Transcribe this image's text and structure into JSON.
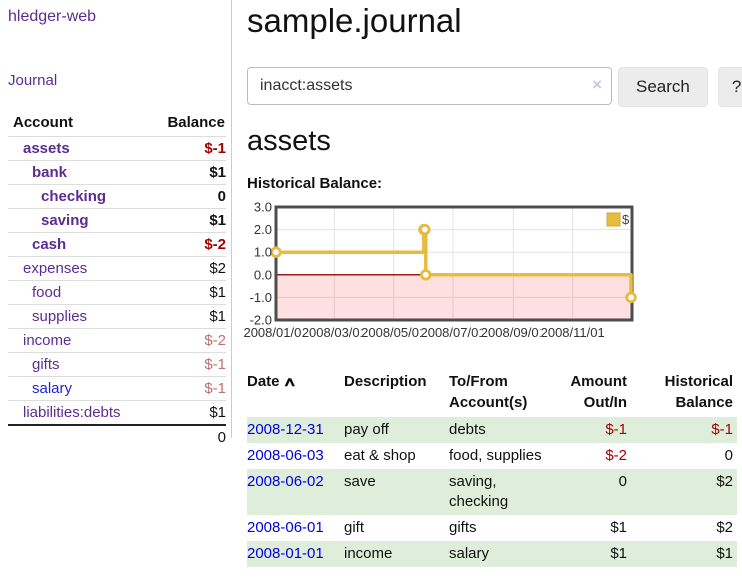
{
  "app_title": "hledger-web",
  "sidebar": {
    "journal_link": "Journal",
    "accounts": {
      "account_header": "Account",
      "balance_header": "Balance",
      "rows": [
        {
          "name": "assets",
          "indent": 1,
          "bold": true,
          "balance": "$-1",
          "negative": "strong"
        },
        {
          "name": "bank",
          "indent": 2,
          "bold": true,
          "balance": "$1",
          "negative": "none"
        },
        {
          "name": "checking",
          "indent": 3,
          "bold": true,
          "balance": "0",
          "negative": "none"
        },
        {
          "name": "saving",
          "indent": 3,
          "bold": true,
          "balance": "$1",
          "negative": "none"
        },
        {
          "name": "cash",
          "indent": 2,
          "bold": true,
          "balance": "$-2",
          "negative": "strong"
        },
        {
          "name": "expenses",
          "indent": 1,
          "bold": false,
          "balance": "$2",
          "negative": "none"
        },
        {
          "name": "food",
          "indent": 2,
          "bold": false,
          "balance": "$1",
          "negative": "none"
        },
        {
          "name": "supplies",
          "indent": 2,
          "bold": false,
          "balance": "$1",
          "negative": "none"
        },
        {
          "name": "income",
          "indent": 1,
          "bold": false,
          "balance": "$-2",
          "negative": "soft"
        },
        {
          "name": "gifts",
          "indent": 2,
          "bold": false,
          "balance": "$-1",
          "negative": "soft"
        },
        {
          "name": "salary",
          "indent": 2,
          "bold": false,
          "balance": "$-1",
          "negative": "soft",
          "link_style": "blue"
        },
        {
          "name": "liabilities:debts",
          "indent": 1,
          "bold": false,
          "balance": "$1",
          "negative": "none"
        }
      ],
      "total": "0"
    }
  },
  "main": {
    "title": "sample.journal",
    "search": {
      "value": "inacct:assets",
      "clear_icon": "×",
      "button_label": "Search",
      "help_label": "?"
    },
    "account_heading": "assets",
    "chart_title": "Historical Balance:"
  },
  "chart_data": {
    "type": "line",
    "step": true,
    "title": "Historical Balance:",
    "legend": {
      "label": "$",
      "position": "top-right"
    },
    "series": [
      {
        "name": "$",
        "color": "#e7bb3d",
        "points": [
          [
            "2008-01-01",
            1
          ],
          [
            "2008-06-01",
            2
          ],
          [
            "2008-06-02",
            2
          ],
          [
            "2008-06-03",
            0
          ],
          [
            "2008-12-31",
            -1
          ]
        ]
      }
    ],
    "xlim": [
      "2008-01-01",
      "2009-01-01"
    ],
    "ylim": [
      -2,
      3
    ],
    "x_tick_labels": [
      "2008/01/01",
      "2008/03/01",
      "2008/05/01",
      "2008/07/01",
      "2008/09/01",
      "2008/11/01"
    ],
    "y_tick_labels": [
      "3.0",
      "2.0",
      "1.0",
      "0.0",
      "-1.0",
      "-2.0"
    ],
    "grid": true,
    "zero_line_color": "#9b1c1c",
    "negative_region_color": "rgba(255,0,0,0.12)",
    "border_color": "#4d4d4d",
    "grid_color": "#e3e3e3"
  },
  "register": {
    "headers": {
      "date": "Date",
      "sort_icon": "∧",
      "description": "Description",
      "accounts": "To/From Account(s)",
      "amount": "Amount Out/In",
      "balance": "Historical Balance"
    },
    "rows": [
      {
        "date": "2008-12-31",
        "description": "pay off",
        "accounts": "debts",
        "amount": "$-1",
        "amount_negative": true,
        "balance": "$-1",
        "balance_negative": true
      },
      {
        "date": "2008-06-03",
        "description": "eat & shop",
        "accounts": "food, supplies",
        "amount": "$-2",
        "amount_negative": true,
        "balance": "0",
        "balance_negative": false
      },
      {
        "date": "2008-06-02",
        "description": "save",
        "accounts": "saving, checking",
        "amount": "0",
        "amount_negative": false,
        "balance": "$2",
        "balance_negative": false
      },
      {
        "date": "2008-06-01",
        "description": "gift",
        "accounts": "gifts",
        "amount": "$1",
        "amount_negative": false,
        "balance": "$2",
        "balance_negative": false
      },
      {
        "date": "2008-01-01",
        "description": "income",
        "accounts": "salary",
        "amount": "$1",
        "amount_negative": false,
        "balance": "$1",
        "balance_negative": false
      }
    ]
  },
  "colors": {
    "purple_link": "#5c2d91",
    "blue_link": "#2222dd",
    "date_link_blue": "#0000dd",
    "negative_strong": "#a40000",
    "negative_soft": "#bf7272",
    "row_stripe_green": "#dfeeda",
    "chart_line_gold": "#e7bb3d",
    "button_gray": "#ececec"
  }
}
